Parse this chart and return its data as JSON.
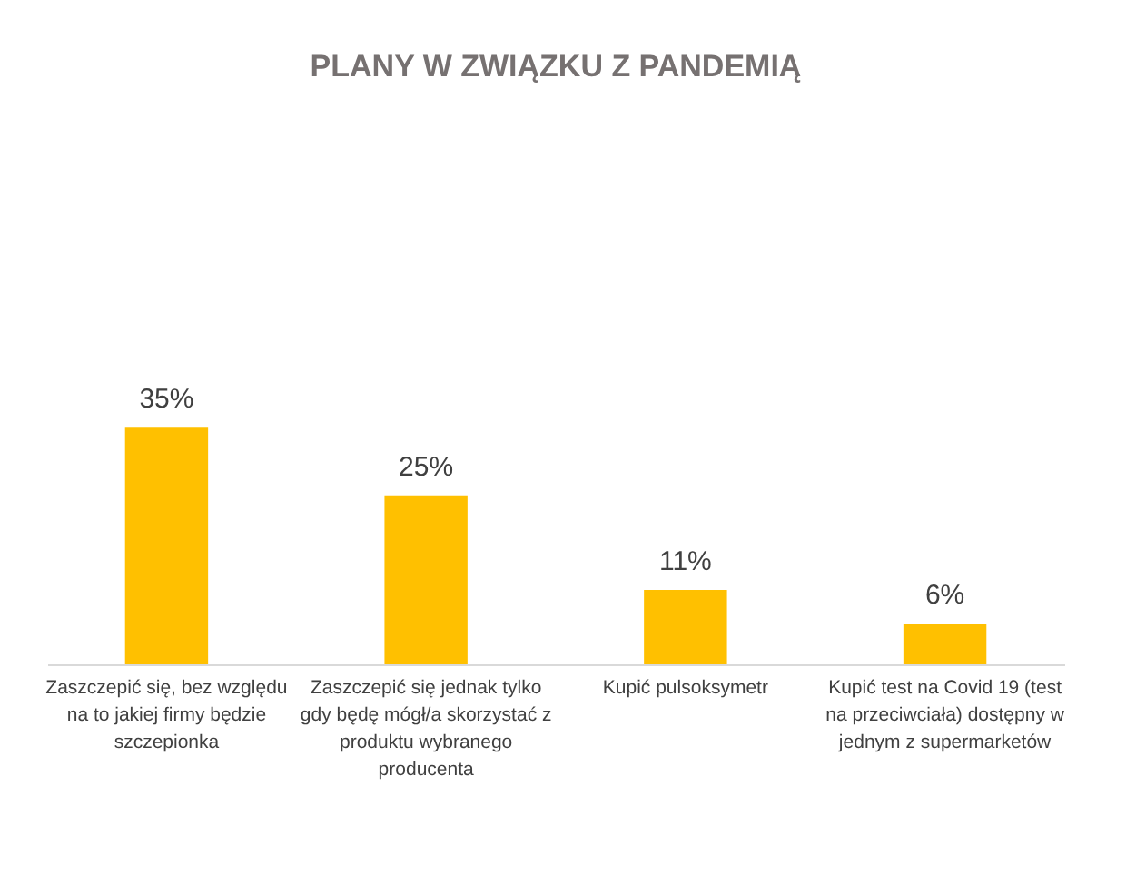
{
  "chart_data": {
    "type": "bar",
    "title": "PLANY W ZWIĄZKU Z PANDEMIĄ",
    "categories": [
      "Zaszczepić się, bez względu na to jakiej firmy będzie szczepionka",
      "Zaszczepić się  jednak tylko gdy będę mógł/a skorzystać z produktu wybranego producenta",
      "Kupić pulsoksymetr",
      "Kupić test na Covid 19 (test na przeciwciała) dostępny w jednym z supermarketów"
    ],
    "values": [
      35,
      25,
      11,
      6
    ],
    "value_labels": [
      "35%",
      "25%",
      "11%",
      "6%"
    ],
    "color": "#ffc000",
    "grid": false
  }
}
